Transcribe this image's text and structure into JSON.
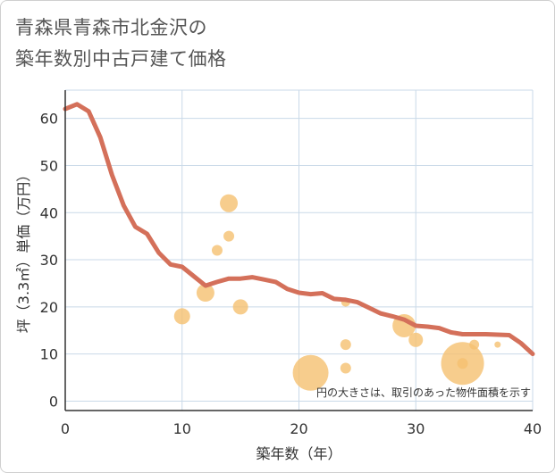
{
  "chart_data": {
    "type": "scatter",
    "title_lines": [
      "青森県青森市北金沢の",
      "築年数別中古戸建て価格"
    ],
    "xlabel": "築年数（年）",
    "ylabel": "坪（3.3㎡）単価（万円）",
    "xlim": [
      0,
      40
    ],
    "ylim": [
      -2,
      66
    ],
    "x_ticks": [
      0,
      10,
      20,
      30,
      40
    ],
    "y_ticks": [
      0,
      10,
      20,
      30,
      40,
      50,
      60
    ],
    "grid": true,
    "note": "円の大きさは、取引のあった物件面積を示す",
    "colors": {
      "line": "#d4705a",
      "bubble": "#f5c170",
      "grid": "#c9d9e8",
      "axis": "#333333"
    },
    "series": [
      {
        "name": "trend",
        "kind": "line",
        "x": [
          0,
          1,
          2,
          3,
          4,
          5,
          6,
          7,
          8,
          9,
          10,
          11,
          12,
          13,
          14,
          15,
          16,
          17,
          18,
          19,
          20,
          21,
          22,
          23,
          24,
          25,
          26,
          27,
          28,
          29,
          30,
          31,
          32,
          33,
          34,
          35,
          36,
          37,
          38,
          39,
          40
        ],
        "y": [
          62,
          63,
          61.5,
          56,
          48,
          41.5,
          37,
          35.5,
          31.5,
          29,
          28.5,
          26.5,
          24.5,
          25.3,
          26,
          26,
          26.3,
          25.8,
          25.3,
          23.8,
          23,
          22.7,
          22.9,
          21.7,
          21.5,
          21,
          19.8,
          18.6,
          18,
          17.3,
          16,
          15.8,
          15.5,
          14.6,
          14.2,
          14.2,
          14.2,
          14.1,
          14,
          12.3,
          10
        ]
      },
      {
        "name": "transactions",
        "kind": "bubble",
        "points": [
          {
            "x": 10,
            "y": 18,
            "size": 9
          },
          {
            "x": 12,
            "y": 23,
            "size": 10
          },
          {
            "x": 13,
            "y": 32,
            "size": 6
          },
          {
            "x": 14,
            "y": 42,
            "size": 10
          },
          {
            "x": 14,
            "y": 35,
            "size": 6
          },
          {
            "x": 15,
            "y": 20,
            "size": 8.5
          },
          {
            "x": 21,
            "y": 6,
            "size": 20
          },
          {
            "x": 24,
            "y": 21,
            "size": 5
          },
          {
            "x": 24,
            "y": 12,
            "size": 6
          },
          {
            "x": 24,
            "y": 7,
            "size": 6
          },
          {
            "x": 29,
            "y": 16,
            "size": 13
          },
          {
            "x": 30,
            "y": 13,
            "size": 8
          },
          {
            "x": 34,
            "y": 8,
            "size": 24
          },
          {
            "x": 34,
            "y": 8,
            "size": 6
          },
          {
            "x": 35,
            "y": 12,
            "size": 5.5
          },
          {
            "x": 37,
            "y": 12,
            "size": 3.5
          }
        ]
      }
    ]
  }
}
